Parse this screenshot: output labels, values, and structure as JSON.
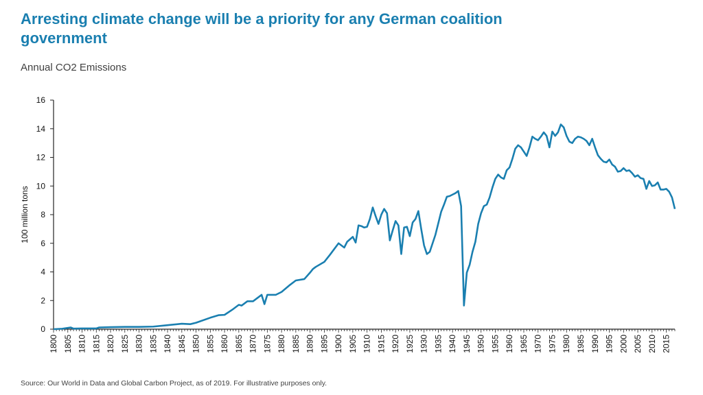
{
  "title": "Arresting climate change will be a priority for any German coalition government",
  "subtitle": "Annual CO2 Emissions",
  "source": "Source: Our World in Data and Global Carbon Project, as of 2019. For illustrative purposes only.",
  "colors": {
    "line": "#1a7fb0",
    "title": "#1a7fb0",
    "axis": "#222222"
  },
  "chart_data": {
    "type": "line",
    "title": "Annual CO2 Emissions",
    "xlabel": "",
    "ylabel": "100 million tons",
    "xlim": [
      1800,
      2018
    ],
    "ylim": [
      0,
      16
    ],
    "yticks": [
      0,
      2,
      4,
      6,
      8,
      10,
      12,
      14,
      16
    ],
    "xticks": [
      1800,
      1805,
      1810,
      1815,
      1820,
      1825,
      1830,
      1835,
      1840,
      1845,
      1850,
      1855,
      1860,
      1865,
      1870,
      1875,
      1880,
      1885,
      1890,
      1895,
      1900,
      1905,
      1910,
      1915,
      1920,
      1925,
      1930,
      1935,
      1940,
      1945,
      1950,
      1955,
      1960,
      1965,
      1970,
      1975,
      1980,
      1985,
      1990,
      1995,
      2000,
      2005,
      2010,
      2015
    ],
    "series": [
      {
        "name": "Annual CO2 Emissions",
        "x": [
          1800,
          1803,
          1806,
          1807,
          1810,
          1815,
          1816,
          1820,
          1825,
          1830,
          1835,
          1840,
          1845,
          1848,
          1850,
          1855,
          1858,
          1860,
          1863,
          1865,
          1866,
          1868,
          1870,
          1873,
          1874,
          1875,
          1878,
          1880,
          1883,
          1885,
          1888,
          1890,
          1891,
          1892,
          1895,
          1897,
          1900,
          1901,
          1902,
          1903,
          1905,
          1906,
          1907,
          1908,
          1909,
          1910,
          1911,
          1912,
          1913,
          1914,
          1915,
          1916,
          1917,
          1918,
          1919,
          1920,
          1921,
          1922,
          1923,
          1924,
          1925,
          1926,
          1927,
          1928,
          1929,
          1930,
          1931,
          1932,
          1933,
          1934,
          1935,
          1936,
          1937,
          1938,
          1939,
          1940,
          1941,
          1942,
          1943,
          1944,
          1945,
          1946,
          1947,
          1948,
          1949,
          1950,
          1951,
          1952,
          1953,
          1954,
          1955,
          1956,
          1957,
          1958,
          1959,
          1960,
          1961,
          1962,
          1963,
          1964,
          1965,
          1966,
          1967,
          1968,
          1969,
          1970,
          1971,
          1972,
          1973,
          1974,
          1975,
          1976,
          1977,
          1978,
          1979,
          1980,
          1981,
          1982,
          1983,
          1984,
          1985,
          1986,
          1987,
          1988,
          1989,
          1990,
          1991,
          1992,
          1993,
          1994,
          1995,
          1996,
          1997,
          1998,
          1999,
          2000,
          2001,
          2002,
          2003,
          2004,
          2005,
          2006,
          2007,
          2008,
          2009,
          2010,
          2011,
          2012,
          2013,
          2014,
          2015,
          2016,
          2017,
          2018
        ],
        "values": [
          0.0,
          0.03,
          0.12,
          0.04,
          0.05,
          0.05,
          0.12,
          0.14,
          0.16,
          0.16,
          0.18,
          0.28,
          0.38,
          0.35,
          0.45,
          0.8,
          0.98,
          1.0,
          1.4,
          1.7,
          1.65,
          1.95,
          1.95,
          2.4,
          1.75,
          2.4,
          2.4,
          2.6,
          3.1,
          3.4,
          3.5,
          3.95,
          4.2,
          4.35,
          4.7,
          5.2,
          6.0,
          5.85,
          5.7,
          6.1,
          6.45,
          6.05,
          7.25,
          7.2,
          7.1,
          7.15,
          7.7,
          8.5,
          7.9,
          7.35,
          8.0,
          8.4,
          8.1,
          6.2,
          6.9,
          7.55,
          7.25,
          5.25,
          7.1,
          7.15,
          6.5,
          7.45,
          7.7,
          8.25,
          7.0,
          5.85,
          5.25,
          5.4,
          6.0,
          6.6,
          7.4,
          8.2,
          8.7,
          9.25,
          9.3,
          9.4,
          9.5,
          9.65,
          8.6,
          1.65,
          3.95,
          4.5,
          5.4,
          6.1,
          7.35,
          8.1,
          8.6,
          8.7,
          9.2,
          9.9,
          10.5,
          10.8,
          10.6,
          10.5,
          11.1,
          11.3,
          11.9,
          12.6,
          12.85,
          12.7,
          12.4,
          12.1,
          12.7,
          13.45,
          13.3,
          13.2,
          13.45,
          13.75,
          13.5,
          12.7,
          13.8,
          13.5,
          13.75,
          14.3,
          14.1,
          13.5,
          13.1,
          13.0,
          13.3,
          13.45,
          13.4,
          13.3,
          13.15,
          12.85,
          13.3,
          12.7,
          12.15,
          11.9,
          11.7,
          11.65,
          11.85,
          11.5,
          11.35,
          11.0,
          11.05,
          11.25,
          11.05,
          11.1,
          10.9,
          10.65,
          10.75,
          10.55,
          10.5,
          9.8,
          10.35,
          10.0,
          10.05,
          10.25,
          9.75,
          9.75,
          9.8,
          9.6,
          9.2,
          8.4
        ]
      }
    ]
  }
}
